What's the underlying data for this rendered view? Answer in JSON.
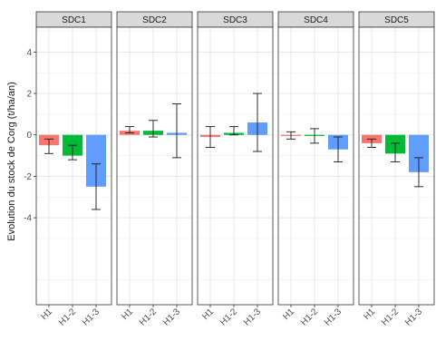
{
  "chart_data": {
    "type": "bar",
    "ylabel": "Evolution du stock de Corg (t/ha/an)",
    "xlabel": "",
    "ylim": [
      -8.2,
      5.2
    ],
    "yticks": [
      -4,
      -2,
      0,
      2,
      4
    ],
    "ytick_labels": [
      "-4",
      "-2",
      "0",
      "2",
      "4"
    ],
    "grid": true,
    "categories": [
      "H1",
      "H1-2",
      "H1-3"
    ],
    "colors": {
      "H1": "#f8766d",
      "H1-2": "#00ba38",
      "H1-3": "#619cff"
    },
    "panels": [
      {
        "label": "SDC1",
        "values": [
          -0.5,
          -1.0,
          -2.5
        ],
        "error_low": [
          -0.9,
          -1.2,
          -3.6
        ],
        "error_high": [
          -0.2,
          -0.5,
          -1.4
        ]
      },
      {
        "label": "SDC2",
        "values": [
          0.2,
          0.2,
          0.1
        ],
        "error_low": [
          0.1,
          -0.1,
          -1.1
        ],
        "error_high": [
          0.4,
          0.7,
          1.5
        ]
      },
      {
        "label": "SDC3",
        "values": [
          -0.1,
          0.1,
          0.6
        ],
        "error_low": [
          -0.6,
          0.0,
          -0.8
        ],
        "error_high": [
          0.4,
          0.4,
          2.0
        ]
      },
      {
        "label": "SDC4",
        "values": [
          -0.05,
          -0.05,
          -0.7
        ],
        "error_low": [
          -0.2,
          -0.4,
          -1.3
        ],
        "error_high": [
          0.15,
          0.3,
          -0.1
        ]
      },
      {
        "label": "SDC5",
        "values": [
          -0.4,
          -0.9,
          -1.8
        ],
        "error_low": [
          -0.6,
          -1.3,
          -2.5
        ],
        "error_high": [
          -0.2,
          -0.4,
          -1.1
        ]
      }
    ]
  }
}
